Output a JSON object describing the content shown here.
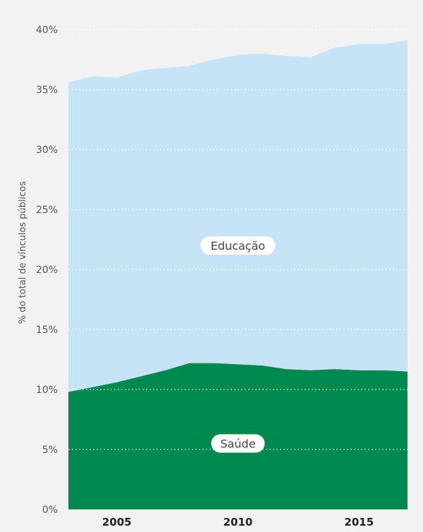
{
  "chart_data": {
    "type": "area",
    "stacked": true,
    "ylabel": "% do total de vínculos públicos",
    "xlabel": "",
    "title": "",
    "ylim": [
      0,
      40
    ],
    "xlim": [
      2003,
      2017
    ],
    "y_ticks": [
      0,
      5,
      10,
      15,
      20,
      25,
      30,
      35,
      40
    ],
    "y_tick_labels": [
      "0%",
      "5%",
      "10%",
      "15%",
      "20%",
      "25%",
      "30%",
      "35%",
      "40%"
    ],
    "x_ticks": [
      2005,
      2010,
      2015
    ],
    "x_tick_labels": [
      "2005",
      "2010",
      "2015"
    ],
    "grid": true,
    "x": [
      2003,
      2004,
      2005,
      2006,
      2007,
      2008,
      2009,
      2010,
      2011,
      2012,
      2013,
      2014,
      2015,
      2016,
      2017
    ],
    "series": [
      {
        "name": "Saúde",
        "color": "#00894f",
        "values": [
          9.8,
          10.2,
          10.6,
          11.1,
          11.6,
          12.2,
          12.2,
          12.1,
          12.0,
          11.7,
          11.6,
          11.7,
          11.6,
          11.6,
          11.5
        ]
      },
      {
        "name": "Educação",
        "color": "#c5e5f7",
        "values": [
          25.8,
          25.9,
          25.4,
          25.5,
          25.2,
          24.8,
          25.3,
          25.8,
          26.0,
          26.1,
          26.1,
          26.8,
          27.2,
          27.2,
          27.6
        ]
      }
    ]
  }
}
